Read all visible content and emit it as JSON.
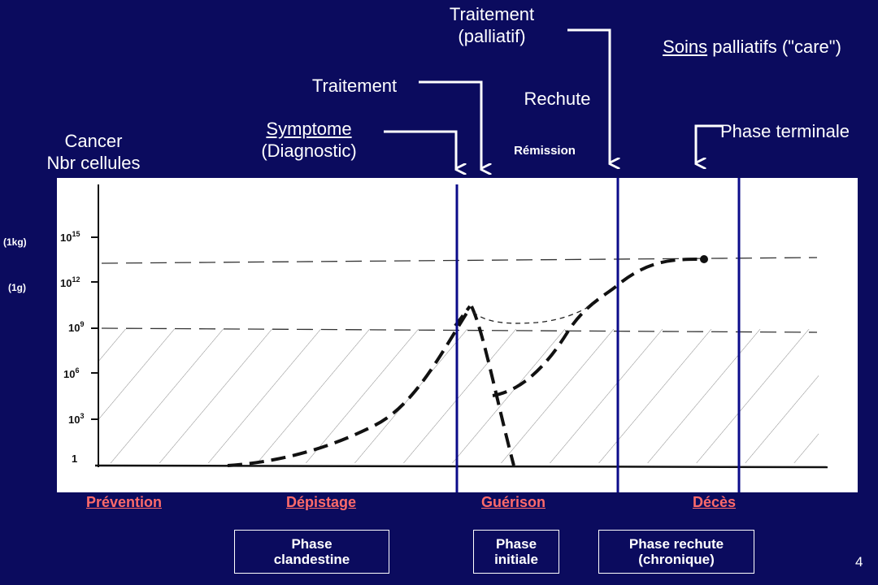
{
  "y_axis": {
    "title_line1": "Cancer",
    "title_line2": "Nbr cellules",
    "ticks": [
      {
        "base": "10",
        "exp": "15"
      },
      {
        "base": "10",
        "exp": "12"
      },
      {
        "base": "10",
        "exp": "9"
      },
      {
        "base": "10",
        "exp": "6"
      },
      {
        "base": "10",
        "exp": "3"
      },
      {
        "base": "1",
        "exp": ""
      }
    ],
    "mass_labels": [
      "(1kg)",
      "(1g)"
    ]
  },
  "events": {
    "symptome": "Symptome",
    "diagnostic": "(Diagnostic)",
    "traitement": "Traitement",
    "traitement_palliatif_line1": "Traitement",
    "traitement_palliatif_line2": "(palliatif)",
    "rechute": "Rechute",
    "remission": "Rémission",
    "soins_word": "Soins",
    "soins_rest": " palliatifs (\"care\")",
    "phase_terminale": "Phase terminale"
  },
  "bottom_labels": {
    "prevention": "Prévention",
    "depistage": "Dépistage",
    "guerison": "Guérison",
    "deces": "Décès"
  },
  "phase_boxes": {
    "clandestine": "Phase\nclandestine",
    "initiale": "Phase\ninitiale",
    "rechute": "Phase rechute\n(chronique)"
  },
  "page_number": "4",
  "colors": {
    "background": "#0b0b5e",
    "panel": "#ffffff",
    "phase_label": "#ff6a6a",
    "divider": "#0b0b8a",
    "curve": "#000000"
  }
}
